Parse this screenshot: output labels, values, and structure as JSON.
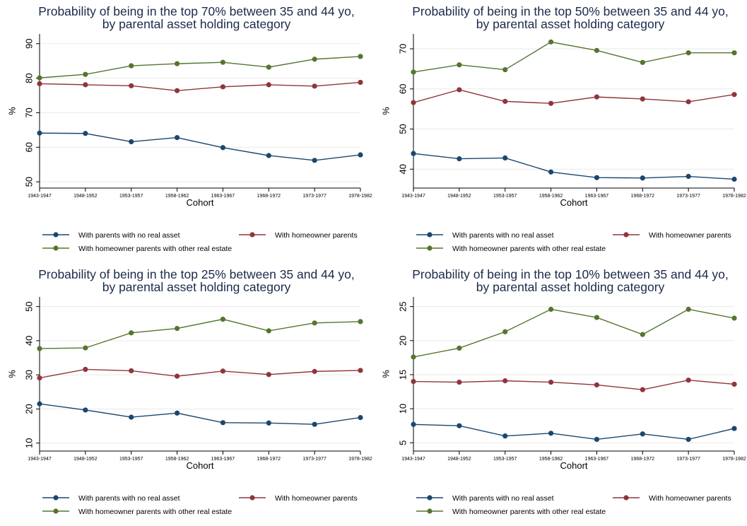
{
  "colors": {
    "no_asset": "#1a476f",
    "homeowner": "#90353b",
    "other_re": "#55752f",
    "title": "#1b2a4a",
    "grid": "#eaeaea"
  },
  "chart_data": [
    {
      "type": "line",
      "title": [
        "Probability of being in the top 70% between 35 and 44 yo,",
        "by parental asset holding category"
      ],
      "xlabel": "Cohort",
      "ylabel": "%",
      "categories": [
        "1943-1947",
        "1948-1952",
        "1953-1957",
        "1958-1962",
        "1963-1967",
        "1968-1972",
        "1973-1977",
        "1978-1982"
      ],
      "ylim": [
        49,
        92
      ],
      "yticks": [
        50,
        60,
        70,
        80,
        90
      ],
      "grid": true,
      "legend": "bottom",
      "series": [
        {
          "name": "With parents with no real asset",
          "color_key": "no_asset",
          "values": [
            64.1,
            64.0,
            61.6,
            62.8,
            59.9,
            57.6,
            56.2,
            57.8
          ]
        },
        {
          "name": "With homeowner parents",
          "color_key": "homeowner",
          "values": [
            78.4,
            78.1,
            77.8,
            76.4,
            77.5,
            78.1,
            77.7,
            78.8
          ]
        },
        {
          "name": "With homeowner parents with other real estate",
          "color_key": "other_re",
          "values": [
            80.1,
            81.1,
            83.6,
            84.2,
            84.6,
            83.2,
            85.5,
            86.3
          ]
        }
      ]
    },
    {
      "type": "line",
      "title": [
        "Probability of being in the top 50% between 35 and 44 yo,",
        "by parental asset holding category"
      ],
      "xlabel": "Cohort",
      "ylabel": "%",
      "categories": [
        "1943-1947",
        "1948-1952",
        "1953-1957",
        "1958-1962",
        "1963-1967",
        "1968-1972",
        "1973-1977",
        "1978-1982"
      ],
      "ylim": [
        36,
        73
      ],
      "yticks": [
        40,
        50,
        60,
        70
      ],
      "grid": true,
      "legend": "bottom",
      "series": [
        {
          "name": "With parents with no real asset",
          "color_key": "no_asset",
          "values": [
            43.9,
            42.6,
            42.8,
            39.3,
            37.9,
            37.8,
            38.2,
            37.5
          ]
        },
        {
          "name": "With homeowner parents",
          "color_key": "homeowner",
          "values": [
            56.6,
            59.8,
            56.9,
            56.4,
            58.0,
            57.5,
            56.8,
            58.6
          ]
        },
        {
          "name": "With homeowner parents with other real estate",
          "color_key": "other_re",
          "values": [
            64.2,
            66.0,
            64.8,
            71.7,
            69.6,
            66.6,
            69.0,
            69.0
          ]
        }
      ]
    },
    {
      "type": "line",
      "title": [
        "Probability of being in the top 25% between 35 and 44 yo,",
        "by parental asset holding category"
      ],
      "xlabel": "Cohort",
      "ylabel": "%",
      "categories": [
        "1943-1947",
        "1948-1952",
        "1953-1957",
        "1958-1962",
        "1963-1967",
        "1968-1972",
        "1973-1977",
        "1978-1982"
      ],
      "ylim": [
        8.5,
        52
      ],
      "yticks": [
        10,
        20,
        30,
        40,
        50
      ],
      "grid": true,
      "legend": "bottom",
      "series": [
        {
          "name": "With parents with no real asset",
          "color_key": "no_asset",
          "values": [
            21.5,
            19.7,
            17.6,
            18.8,
            16.0,
            15.9,
            15.5,
            17.5
          ]
        },
        {
          "name": "With homeowner parents",
          "color_key": "homeowner",
          "values": [
            29.1,
            31.6,
            31.2,
            29.6,
            31.1,
            30.1,
            31.0,
            31.3
          ]
        },
        {
          "name": "With homeowner parents with other real estate",
          "color_key": "other_re",
          "values": [
            37.7,
            37.9,
            42.3,
            43.6,
            46.3,
            42.9,
            45.2,
            45.6
          ]
        }
      ]
    },
    {
      "type": "line",
      "title": [
        "Probability of being in the top 10% between 35 and 44 yo,",
        "by parental asset holding category"
      ],
      "xlabel": "Cohort",
      "ylabel": "%",
      "categories": [
        "1943-1947",
        "1948-1952",
        "1953-1957",
        "1958-1962",
        "1963-1967",
        "1968-1972",
        "1973-1977",
        "1978-1982"
      ],
      "ylim": [
        4.2,
        26
      ],
      "yticks": [
        5,
        10,
        15,
        20,
        25
      ],
      "grid": true,
      "legend": "bottom",
      "series": [
        {
          "name": "With parents with no real asset",
          "color_key": "no_asset",
          "values": [
            7.7,
            7.5,
            6.0,
            6.4,
            5.5,
            6.3,
            5.5,
            7.1
          ]
        },
        {
          "name": "With homeowner parents",
          "color_key": "homeowner",
          "values": [
            14.0,
            13.9,
            14.1,
            13.9,
            13.5,
            12.8,
            14.2,
            13.6
          ]
        },
        {
          "name": "With homeowner parents with other real estate",
          "color_key": "other_re",
          "values": [
            17.6,
            18.9,
            21.3,
            24.6,
            23.4,
            20.9,
            24.6,
            23.3
          ]
        }
      ]
    }
  ]
}
